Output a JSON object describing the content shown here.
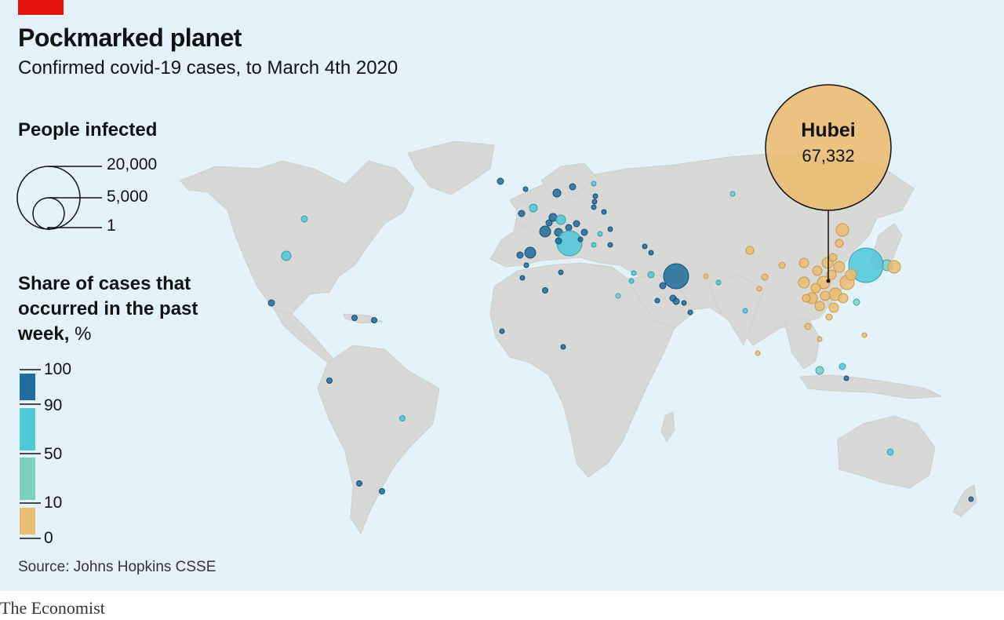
{
  "header": {
    "title": "Pockmarked planet",
    "subtitle": "Confirmed covid-19 cases, to March 4th 2020"
  },
  "size_legend": {
    "heading": "People infected",
    "entries": [
      {
        "label": "20,000",
        "value": 20000
      },
      {
        "label": "5,000",
        "value": 5000
      },
      {
        "label": "1",
        "value": 1
      }
    ]
  },
  "color_legend": {
    "heading": "Share of cases that occurred in the past week,",
    "unit": "%",
    "ticks": [
      "100",
      "90",
      "50",
      "10",
      "0"
    ],
    "bins": [
      {
        "range": "90-100",
        "color": "#1f6c9e"
      },
      {
        "range": "50-90",
        "color": "#4ec7d8"
      },
      {
        "range": "10-50",
        "color": "#7ecfc0"
      },
      {
        "range": "0-10",
        "color": "#ebbd72"
      }
    ]
  },
  "callout": {
    "name": "Hubei",
    "value_label": "67,332",
    "cases": 67332,
    "color": "#ebbd72"
  },
  "source": "Source: Johns Hopkins CSSE",
  "brand": "The Economist",
  "colors": {
    "ocean": "#e4f3fa",
    "land": "#d8d8d6",
    "accent": "#e3120b"
  }
}
